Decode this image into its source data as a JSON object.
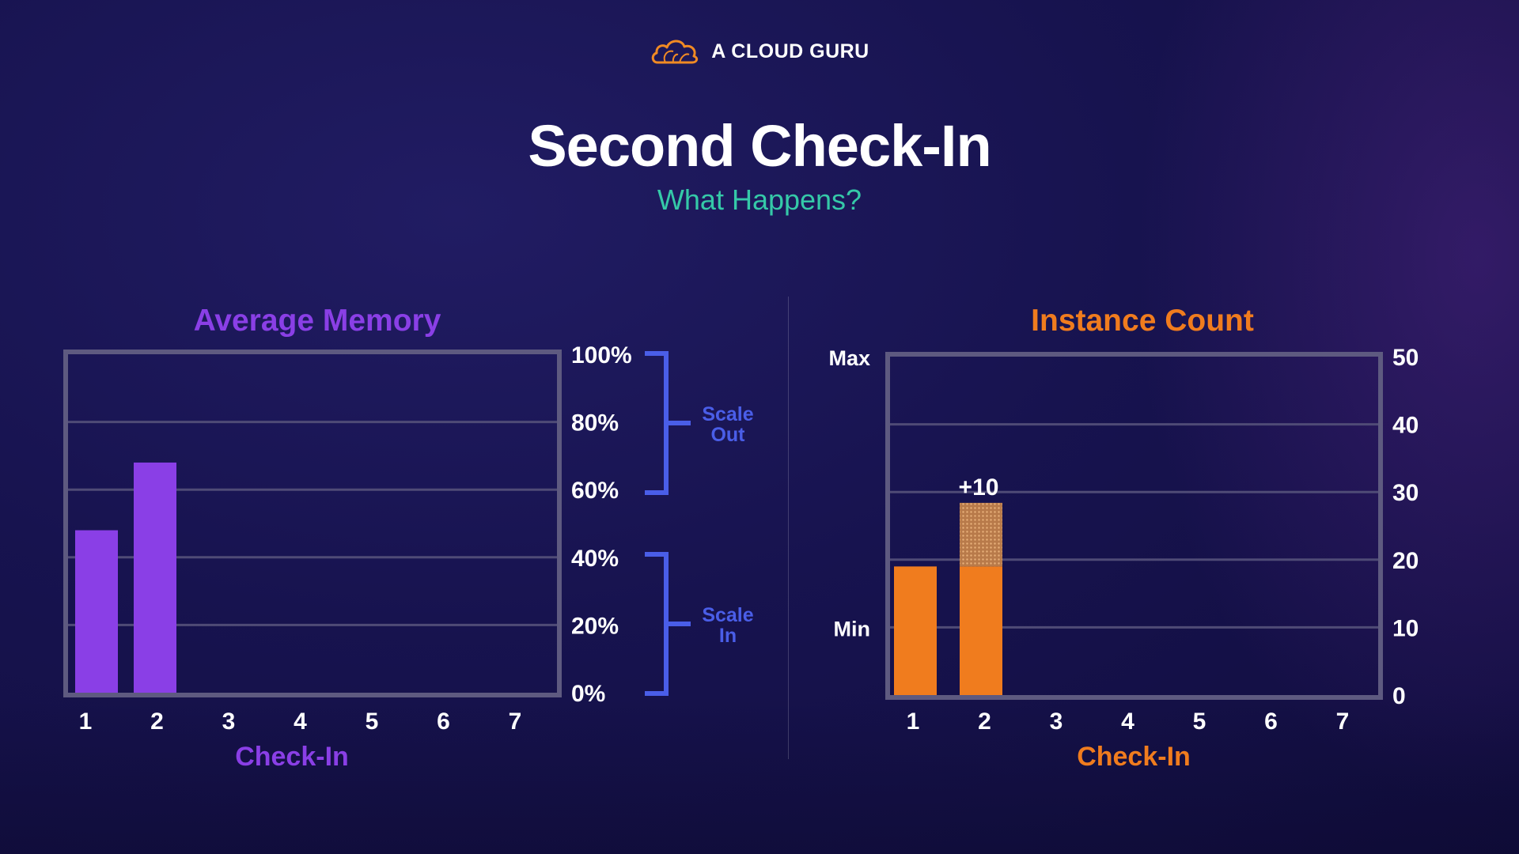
{
  "brand": {
    "name": "A CLOUD GURU",
    "icon": "cloud-icon",
    "color": "#f08a24"
  },
  "header": {
    "title": "Second Check-In",
    "subtitle": "What Happens?"
  },
  "colors": {
    "memory": "#8a3fe6",
    "instances": "#f07c1e",
    "bracket": "#4a5ee8",
    "subtitle": "#35c9a8"
  },
  "chart_data": [
    {
      "type": "bar",
      "title": "Average Memory",
      "xlabel": "Check-In",
      "categories": [
        "1",
        "2",
        "3",
        "4",
        "5",
        "6",
        "7"
      ],
      "values": [
        48,
        68,
        null,
        null,
        null,
        null,
        null
      ],
      "ylim": [
        0,
        100
      ],
      "ytick_labels": [
        "0%",
        "20%",
        "40%",
        "60%",
        "80%",
        "100%"
      ],
      "grid": true,
      "annotations": [
        {
          "label_line1": "Scale",
          "label_line2": "Out",
          "range": [
            60,
            100
          ]
        },
        {
          "label_line1": "Scale",
          "label_line2": "In",
          "range": [
            0,
            40
          ]
        }
      ]
    },
    {
      "type": "bar",
      "title": "Instance Count",
      "xlabel": "Check-In",
      "categories": [
        "1",
        "2",
        "3",
        "4",
        "5",
        "6",
        "7"
      ],
      "values": [
        19,
        19,
        null,
        null,
        null,
        null,
        null
      ],
      "added": [
        0,
        10,
        null,
        null,
        null,
        null,
        null
      ],
      "added_label": "+10",
      "ylim": [
        0,
        50
      ],
      "ytick_labels": [
        "0",
        "10",
        "20",
        "30",
        "40",
        "50"
      ],
      "limits": [
        {
          "label": "Min",
          "value": 10
        },
        {
          "label": "Max",
          "value": 50
        }
      ],
      "grid": true
    }
  ]
}
